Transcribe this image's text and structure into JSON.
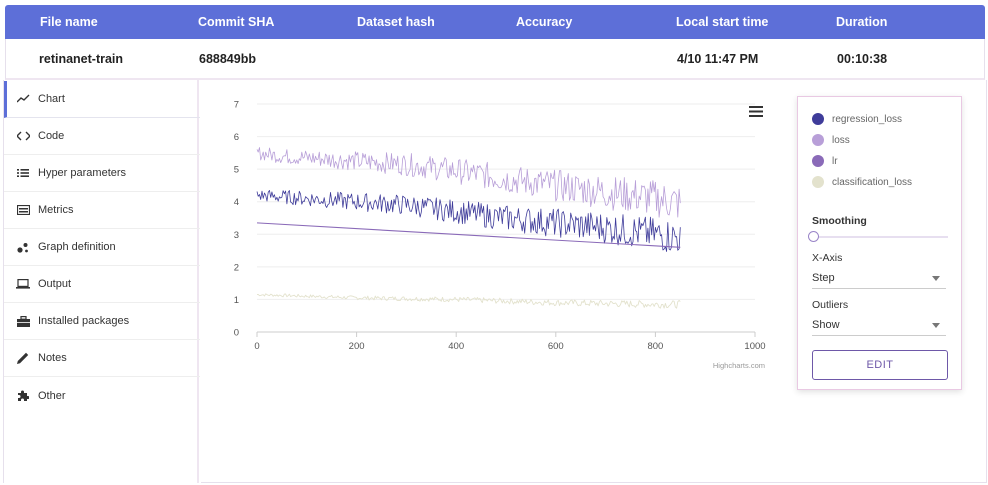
{
  "table": {
    "headers": [
      "File name",
      "Commit SHA",
      "Dataset hash",
      "Accuracy",
      "Local start time",
      "Duration"
    ],
    "row": [
      "retinanet-train",
      "688849bb",
      "",
      "",
      "4/10 11:47 PM",
      "00:10:38"
    ]
  },
  "sidebar": {
    "items": [
      {
        "label": "Chart",
        "icon": "chart-line-icon"
      },
      {
        "label": "Code",
        "icon": "code-icon"
      },
      {
        "label": "Hyper parameters",
        "icon": "list-icon"
      },
      {
        "label": "Metrics",
        "icon": "metrics-icon"
      },
      {
        "label": "Graph definition",
        "icon": "graph-icon"
      },
      {
        "label": "Output",
        "icon": "laptop-icon"
      },
      {
        "label": "Installed packages",
        "icon": "briefcase-icon"
      },
      {
        "label": "Notes",
        "icon": "pencil-icon"
      },
      {
        "label": "Other",
        "icon": "puzzle-icon"
      }
    ]
  },
  "chart_data": {
    "type": "line",
    "title": "",
    "xlabel": "",
    "ylabel": "",
    "xlim": [
      0,
      1000
    ],
    "ylim": [
      0,
      7
    ],
    "x_ticks": [
      0,
      200,
      400,
      600,
      800,
      1000
    ],
    "y_ticks": [
      0,
      1,
      2,
      3,
      4,
      5,
      6,
      7
    ],
    "credit": "Highcharts.com",
    "series": [
      {
        "name": "regression_loss",
        "color": "#3f3c9a",
        "x": [
          0,
          50,
          100,
          200,
          300,
          400,
          500,
          600,
          700,
          800,
          850
        ],
        "values": [
          4.2,
          4.15,
          4.1,
          4.0,
          3.9,
          3.7,
          3.5,
          3.35,
          3.2,
          3.0,
          2.9
        ]
      },
      {
        "name": "loss",
        "color": "#b89fd8",
        "x": [
          0,
          50,
          100,
          200,
          300,
          400,
          500,
          600,
          700,
          800,
          850
        ],
        "values": [
          5.5,
          5.4,
          5.35,
          5.25,
          5.15,
          4.95,
          4.7,
          4.5,
          4.3,
          4.1,
          3.95
        ]
      },
      {
        "name": "lr",
        "color": "#8a6ab8",
        "x": [
          0,
          850
        ],
        "values": [
          3.35,
          2.6
        ]
      },
      {
        "name": "classification_loss",
        "color": "#e3e2cd",
        "x": [
          0,
          200,
          400,
          600,
          800,
          850
        ],
        "values": [
          1.15,
          1.05,
          1.0,
          0.9,
          0.85,
          0.85
        ]
      }
    ]
  },
  "controls": {
    "smoothing_label": "Smoothing",
    "smoothing_value": 0,
    "xaxis_label": "X-Axis",
    "xaxis_value": "Step",
    "outliers_label": "Outliers",
    "outliers_value": "Show",
    "edit_label": "EDIT"
  }
}
